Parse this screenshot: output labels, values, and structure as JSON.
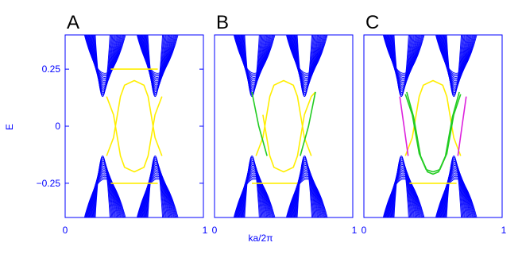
{
  "chart_data": {
    "type": "line",
    "ylabel": "E",
    "xlabel": "ka/2π",
    "colors": {
      "axis": "#0000ff",
      "bulk": "#0000ff",
      "edge_yellow": "#ffee00",
      "edge_green": "#22cc22",
      "edge_magenta": "#dd22dd"
    },
    "panels": [
      {
        "label": "A",
        "xlim": [
          0,
          1
        ],
        "ylim": [
          -0.4,
          0.4
        ],
        "xticks": [
          "0",
          "1"
        ],
        "yticks": [
          "0.25",
          "0",
          "−0.25"
        ],
        "yticks_values": [
          0.25,
          0,
          -0.25
        ],
        "series": [
          {
            "color": "edge_yellow",
            "points": [
              [
                0.3,
                0.13
              ],
              [
                0.35,
                0.05
              ],
              [
                0.4,
                -0.13
              ],
              [
                0.43,
                -0.18
              ],
              [
                0.5,
                -0.2
              ],
              [
                0.57,
                -0.18
              ],
              [
                0.6,
                -0.13
              ],
              [
                0.65,
                0.05
              ],
              [
                0.7,
                0.13
              ]
            ]
          },
          {
            "color": "edge_yellow",
            "points": [
              [
                0.3,
                -0.13
              ],
              [
                0.35,
                -0.05
              ],
              [
                0.4,
                0.13
              ],
              [
                0.43,
                0.18
              ],
              [
                0.5,
                0.2
              ],
              [
                0.57,
                0.18
              ],
              [
                0.6,
                0.13
              ],
              [
                0.65,
                -0.05
              ],
              [
                0.7,
                -0.13
              ]
            ]
          },
          {
            "color": "edge_yellow",
            "points": [
              [
                0.33,
                0.25
              ],
              [
                0.67,
                0.25
              ]
            ]
          },
          {
            "color": "edge_yellow",
            "points": [
              [
                0.33,
                -0.25
              ],
              [
                0.67,
                -0.25
              ]
            ]
          }
        ]
      },
      {
        "label": "B",
        "xlim": [
          0,
          1
        ],
        "ylim": [
          -0.4,
          0.4
        ],
        "xticks": [
          "0",
          "1"
        ],
        "yticks": [],
        "yticks_values": [],
        "series": [
          {
            "color": "edge_yellow",
            "points": [
              [
                0.35,
                0.05
              ],
              [
                0.4,
                -0.13
              ],
              [
                0.43,
                -0.18
              ],
              [
                0.5,
                -0.2
              ],
              [
                0.57,
                -0.18
              ],
              [
                0.6,
                -0.13
              ],
              [
                0.65,
                0.05
              ],
              [
                0.7,
                0.13
              ],
              [
                0.73,
                0.15
              ]
            ]
          },
          {
            "color": "edge_yellow",
            "points": [
              [
                0.3,
                -0.13
              ],
              [
                0.35,
                -0.05
              ],
              [
                0.4,
                0.13
              ],
              [
                0.43,
                0.18
              ],
              [
                0.5,
                0.2
              ],
              [
                0.57,
                0.18
              ],
              [
                0.6,
                0.13
              ],
              [
                0.65,
                -0.05
              ],
              [
                0.7,
                -0.13
              ]
            ]
          },
          {
            "color": "edge_yellow",
            "points": [
              [
                0.27,
                -0.25
              ],
              [
                0.6,
                -0.25
              ]
            ]
          },
          {
            "color": "edge_green",
            "points": [
              [
                0.27,
                0.15
              ],
              [
                0.32,
                0.0
              ],
              [
                0.38,
                -0.13
              ]
            ]
          },
          {
            "color": "edge_green",
            "points": [
              [
                0.62,
                -0.13
              ],
              [
                0.68,
                0.0
              ],
              [
                0.73,
                0.15
              ]
            ]
          }
        ]
      },
      {
        "label": "C",
        "xlim": [
          0,
          1
        ],
        "ylim": [
          -0.4,
          0.4
        ],
        "xticks": [
          "0",
          "1"
        ],
        "yticks": [],
        "yticks_values": [],
        "series": [
          {
            "color": "edge_yellow",
            "points": [
              [
                0.3,
                -0.13
              ],
              [
                0.35,
                -0.05
              ],
              [
                0.4,
                0.13
              ],
              [
                0.43,
                0.18
              ],
              [
                0.5,
                0.2
              ],
              [
                0.57,
                0.18
              ],
              [
                0.6,
                0.13
              ],
              [
                0.65,
                -0.05
              ],
              [
                0.7,
                -0.13
              ]
            ]
          },
          {
            "color": "edge_yellow",
            "points": [
              [
                0.33,
                -0.25
              ],
              [
                0.67,
                -0.25
              ]
            ]
          },
          {
            "color": "edge_green",
            "points": [
              [
                0.3,
                0.14
              ],
              [
                0.35,
                0.05
              ],
              [
                0.4,
                -0.12
              ],
              [
                0.45,
                -0.19
              ],
              [
                0.5,
                -0.2
              ],
              [
                0.55,
                -0.19
              ],
              [
                0.6,
                -0.12
              ],
              [
                0.65,
                0.05
              ],
              [
                0.7,
                0.14
              ]
            ]
          },
          {
            "color": "edge_green",
            "points": [
              [
                0.31,
                0.15
              ],
              [
                0.36,
                0.04
              ],
              [
                0.41,
                -0.13
              ],
              [
                0.46,
                -0.2
              ],
              [
                0.5,
                -0.21
              ],
              [
                0.54,
                -0.2
              ],
              [
                0.59,
                -0.13
              ],
              [
                0.64,
                0.04
              ],
              [
                0.69,
                0.15
              ]
            ]
          },
          {
            "color": "edge_magenta",
            "points": [
              [
                0.26,
                0.13
              ],
              [
                0.29,
                0.0
              ],
              [
                0.32,
                -0.13
              ]
            ]
          },
          {
            "color": "edge_magenta",
            "points": [
              [
                0.68,
                -0.13
              ],
              [
                0.71,
                0.0
              ],
              [
                0.74,
                0.13
              ]
            ]
          }
        ]
      }
    ]
  }
}
